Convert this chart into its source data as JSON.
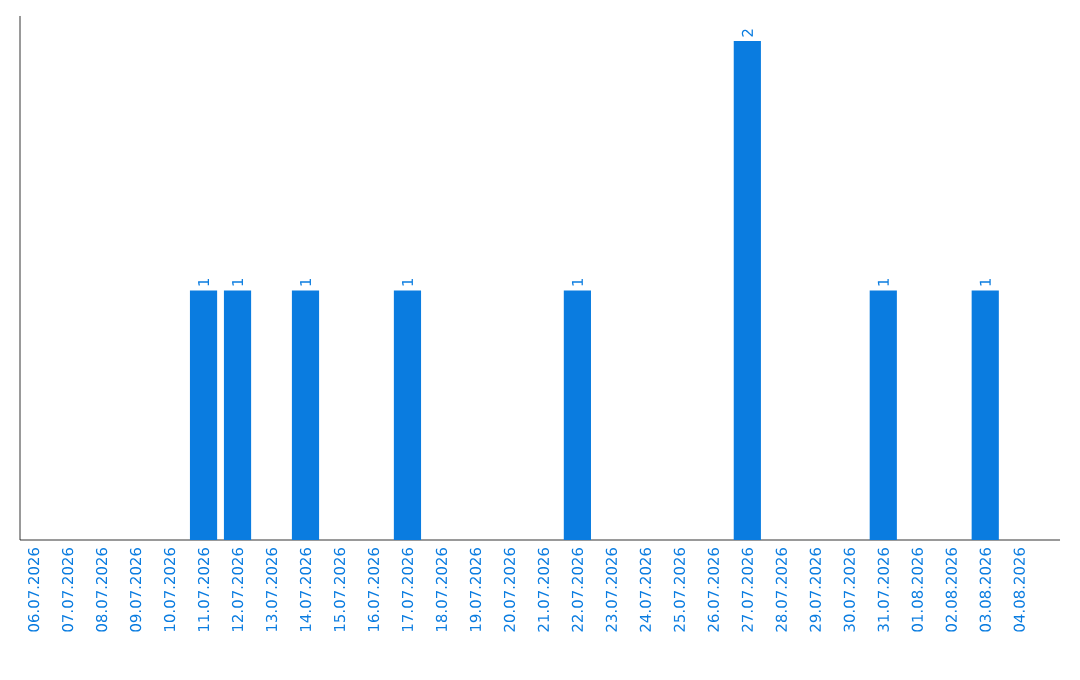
{
  "chart_data": {
    "type": "bar",
    "categories": [
      "06.07.2026",
      "07.07.2026",
      "08.07.2026",
      "09.07.2026",
      "10.07.2026",
      "11.07.2026",
      "12.07.2026",
      "13.07.2026",
      "14.07.2026",
      "15.07.2026",
      "16.07.2026",
      "17.07.2026",
      "18.07.2026",
      "19.07.2026",
      "20.07.2026",
      "21.07.2026",
      "22.07.2026",
      "23.07.2026",
      "24.07.2026",
      "25.07.2026",
      "26.07.2026",
      "27.07.2026",
      "28.07.2026",
      "29.07.2026",
      "30.07.2026",
      "31.07.2026",
      "01.08.2026",
      "02.08.2026",
      "03.08.2026",
      "04.08.2026"
    ],
    "values": [
      0,
      0,
      0,
      0,
      0,
      1,
      1,
      0,
      1,
      0,
      0,
      1,
      0,
      0,
      0,
      0,
      1,
      0,
      0,
      0,
      0,
      2,
      0,
      0,
      0,
      1,
      0,
      0,
      1,
      0
    ],
    "value_labels": [
      null,
      null,
      null,
      null,
      null,
      "1",
      "1",
      null,
      "1",
      null,
      null,
      "1",
      null,
      null,
      null,
      null,
      "1",
      null,
      null,
      null,
      null,
      "2",
      null,
      null,
      null,
      "1",
      null,
      null,
      "1",
      null
    ],
    "color": "#0a7ce0",
    "tick_labels": "x"
  }
}
